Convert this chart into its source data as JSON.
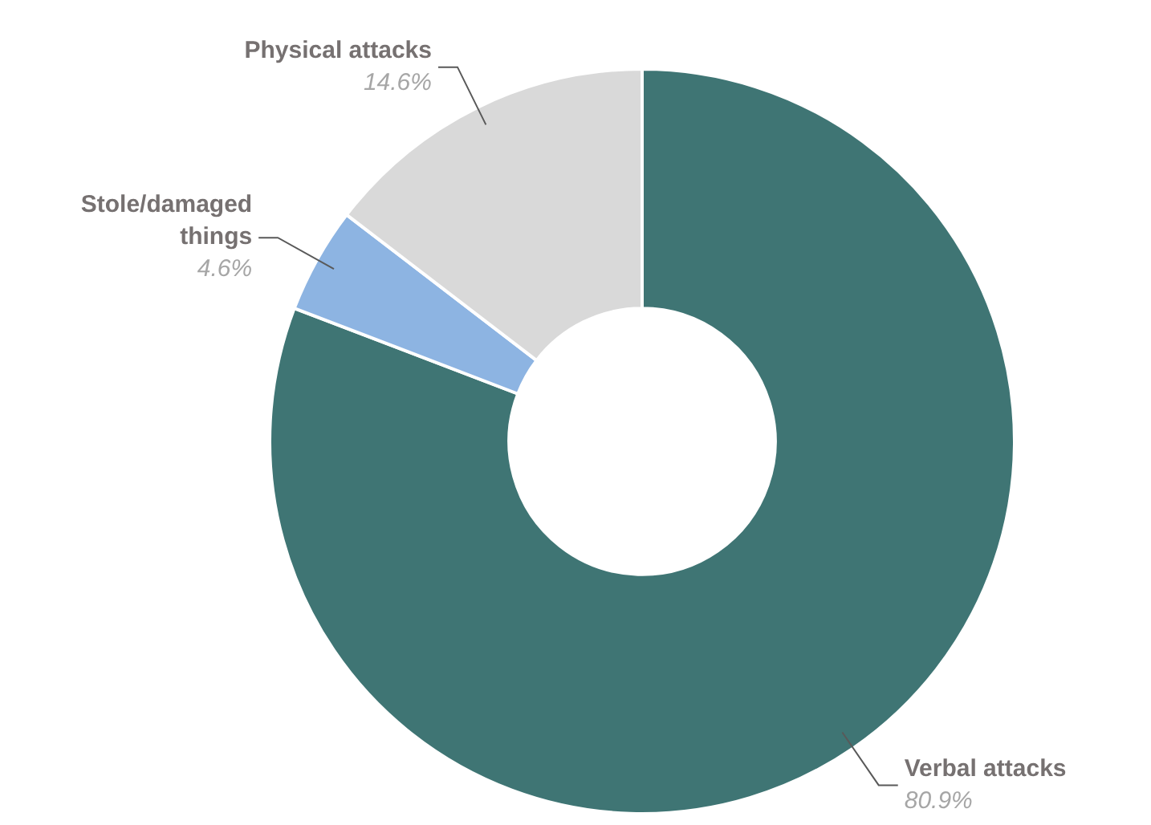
{
  "chart_data": {
    "type": "donut",
    "categories": [
      "Verbal attacks",
      "Stole/damaged things",
      "Physical attacks"
    ],
    "values": [
      80.9,
      4.6,
      14.6
    ],
    "colors": [
      "#3f7574",
      "#8db4e2",
      "#d9d9d9"
    ],
    "value_labels": [
      "80.9%",
      "4.6%",
      "14.6%"
    ],
    "legend": false
  }
}
